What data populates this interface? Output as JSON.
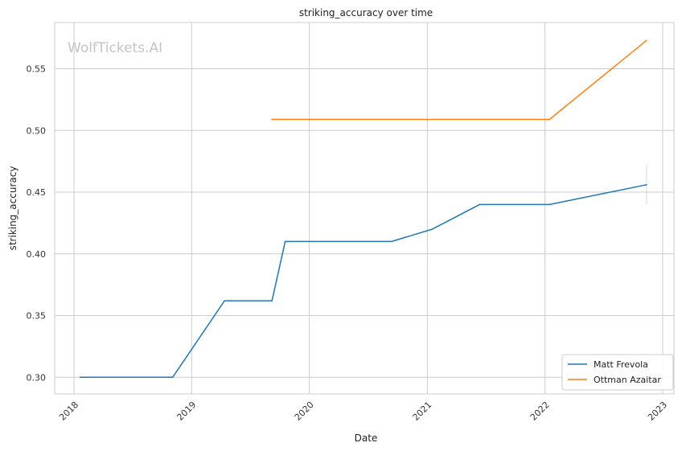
{
  "chart_data": {
    "type": "line",
    "title": "striking_accuracy over time",
    "xlabel": "Date",
    "ylabel": "striking_accuracy",
    "watermark": "WolfTickets.AI",
    "xlim": [
      "2017-11-02",
      "2023-02-05"
    ],
    "ylim": [
      0.2865,
      0.5875
    ],
    "x_ticks": [
      "2018",
      "2019",
      "2020",
      "2021",
      "2022",
      "2023"
    ],
    "y_ticks": [
      "0.30",
      "0.35",
      "0.40",
      "0.45",
      "0.50",
      "0.55"
    ],
    "grid": true,
    "legend_position": "lower-right",
    "series": [
      {
        "name": "Matt Frevola",
        "color": "#1f77b4",
        "points": [
          {
            "x": "2018-01-20",
            "y": 0.3
          },
          {
            "x": "2018-11-03",
            "y": 0.3
          },
          {
            "x": "2019-04-13",
            "y": 0.362
          },
          {
            "x": "2019-09-07",
            "y": 0.362
          },
          {
            "x": "2019-10-18",
            "y": 0.41
          },
          {
            "x": "2020-09-12",
            "y": 0.41
          },
          {
            "x": "2021-01-16",
            "y": 0.42
          },
          {
            "x": "2021-06-12",
            "y": 0.44
          },
          {
            "x": "2022-01-15",
            "y": 0.44
          },
          {
            "x": "2022-11-12",
            "y": 0.456
          }
        ],
        "error_band": {
          "x": "2022-11-12",
          "low": 0.44,
          "high": 0.473
        }
      },
      {
        "name": "Ottman Azaitar",
        "color": "#ff7f0e",
        "points": [
          {
            "x": "2019-09-07",
            "y": 0.509
          },
          {
            "x": "2022-01-15",
            "y": 0.509
          },
          {
            "x": "2022-11-12",
            "y": 0.573
          }
        ]
      }
    ]
  }
}
